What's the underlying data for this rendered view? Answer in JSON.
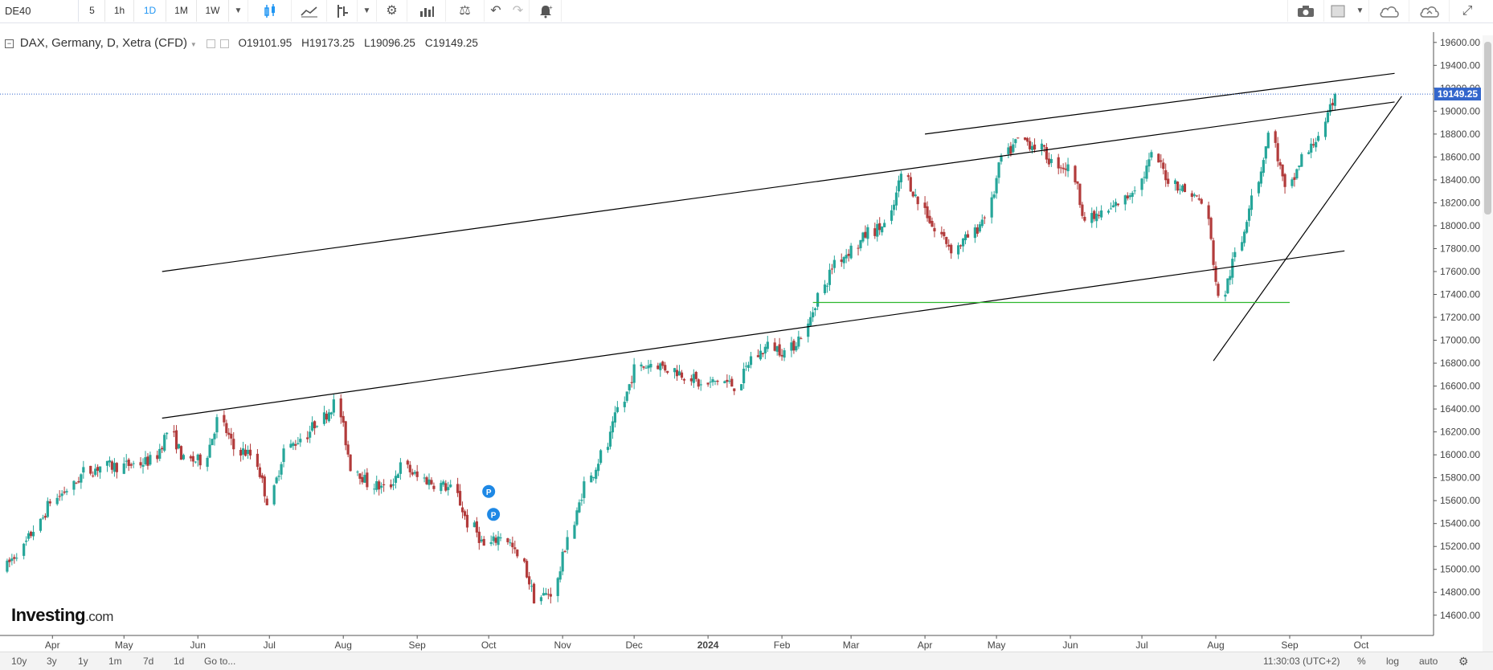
{
  "toolbar": {
    "symbol": "DE40",
    "intervals": [
      "5",
      "1h",
      "1D",
      "1M",
      "1W"
    ],
    "active_interval": "1D"
  },
  "legend": {
    "symbol": "DAX, Germany, D, Xetra (CFD)",
    "open": "O19101.95",
    "high": "H19173.25",
    "low": "L19096.25",
    "close": "C19149.25"
  },
  "price_label": "19149.25",
  "logo": {
    "name": "Investing",
    "suffix": ".com"
  },
  "bottom": {
    "ranges": [
      "10y",
      "3y",
      "1y",
      "1m",
      "7d",
      "1d"
    ],
    "goto": "Go to...",
    "time": "11:30:03 (UTC+2)",
    "percent": "%",
    "log": "log",
    "auto": "auto"
  },
  "colors": {
    "up": "#26a69a",
    "down": "#b23b3b",
    "trendline": "#000000",
    "support": "#2eb82e",
    "price_line": "#3366cc"
  },
  "chart_data": {
    "type": "candlestick",
    "y_ticks": [
      14600,
      14800,
      15000,
      15200,
      15400,
      15600,
      15800,
      16000,
      16200,
      16400,
      16600,
      16800,
      17000,
      17200,
      17400,
      17600,
      17800,
      18000,
      18200,
      18400,
      18600,
      18800,
      19000,
      19200,
      19400,
      19600
    ],
    "ylim": [
      14430,
      19760
    ],
    "x_labels": [
      "Apr",
      "May",
      "Jun",
      "Jul",
      "Aug",
      "Sep",
      "Oct",
      "Nov",
      "Dec",
      "2024",
      "Feb",
      "Mar",
      "Apr",
      "May",
      "Jun",
      "Jul",
      "Aug",
      "Sep",
      "Oct"
    ],
    "x_dates": [
      "2023-04-01",
      "2023-05-01",
      "2023-06-01",
      "2023-07-01",
      "2023-08-01",
      "2023-09-01",
      "2023-10-01",
      "2023-11-01",
      "2023-12-01",
      "2024-01-01",
      "2024-02-01",
      "2024-03-01",
      "2024-04-01",
      "2024-05-01",
      "2024-06-01",
      "2024-07-01",
      "2024-08-01",
      "2024-09-01",
      "2024-10-01"
    ],
    "xlim": [
      "2023-03-10",
      "2024-10-31"
    ],
    "last_price": 19149.25,
    "closes": [
      [
        "2023-03-13",
        15000
      ],
      [
        "2023-03-20",
        15150
      ],
      [
        "2023-03-27",
        15350
      ],
      [
        "2023-04-03",
        15600
      ],
      [
        "2023-04-10",
        15700
      ],
      [
        "2023-04-17",
        15850
      ],
      [
        "2023-04-24",
        15900
      ],
      [
        "2023-05-01",
        15900
      ],
      [
        "2023-05-08",
        15920
      ],
      [
        "2023-05-15",
        15950
      ],
      [
        "2023-05-22",
        16200
      ],
      [
        "2023-05-29",
        15950
      ],
      [
        "2023-06-05",
        15950
      ],
      [
        "2023-06-12",
        16300
      ],
      [
        "2023-06-19",
        16050
      ],
      [
        "2023-06-26",
        16000
      ],
      [
        "2023-07-03",
        15600
      ],
      [
        "2023-07-10",
        16050
      ],
      [
        "2023-07-17",
        16150
      ],
      [
        "2023-07-24",
        16300
      ],
      [
        "2023-07-31",
        16450
      ],
      [
        "2023-08-07",
        15900
      ],
      [
        "2023-08-14",
        15750
      ],
      [
        "2023-08-21",
        15700
      ],
      [
        "2023-08-28",
        15900
      ],
      [
        "2023-09-04",
        15800
      ],
      [
        "2023-09-11",
        15750
      ],
      [
        "2023-09-18",
        15700
      ],
      [
        "2023-09-25",
        15400
      ],
      [
        "2023-10-02",
        15200
      ],
      [
        "2023-10-09",
        15300
      ],
      [
        "2023-10-16",
        15100
      ],
      [
        "2023-10-23",
        14750
      ],
      [
        "2023-10-30",
        14800
      ],
      [
        "2023-11-06",
        15300
      ],
      [
        "2023-11-13",
        15750
      ],
      [
        "2023-11-20",
        16000
      ],
      [
        "2023-11-27",
        16400
      ],
      [
        "2023-12-04",
        16750
      ],
      [
        "2023-12-11",
        16800
      ],
      [
        "2023-12-18",
        16750
      ],
      [
        "2023-12-25",
        16700
      ],
      [
        "2024-01-01",
        16600
      ],
      [
        "2024-01-08",
        16650
      ],
      [
        "2024-01-15",
        16600
      ],
      [
        "2024-01-22",
        16850
      ],
      [
        "2024-01-29",
        16950
      ],
      [
        "2024-02-05",
        16900
      ],
      [
        "2024-02-12",
        17050
      ],
      [
        "2024-02-19",
        17400
      ],
      [
        "2024-02-26",
        17700
      ],
      [
        "2024-03-04",
        17800
      ],
      [
        "2024-03-11",
        17950
      ],
      [
        "2024-03-18",
        18000
      ],
      [
        "2024-03-25",
        18450
      ],
      [
        "2024-04-01",
        18200
      ],
      [
        "2024-04-08",
        17950
      ],
      [
        "2024-04-15",
        17800
      ],
      [
        "2024-04-22",
        17900
      ],
      [
        "2024-04-29",
        18100
      ],
      [
        "2024-05-06",
        18600
      ],
      [
        "2024-05-13",
        18750
      ],
      [
        "2024-05-20",
        18700
      ],
      [
        "2024-05-27",
        18550
      ],
      [
        "2024-06-03",
        18500
      ],
      [
        "2024-06-10",
        18050
      ],
      [
        "2024-06-17",
        18100
      ],
      [
        "2024-06-24",
        18200
      ],
      [
        "2024-07-01",
        18350
      ],
      [
        "2024-07-08",
        18600
      ],
      [
        "2024-07-15",
        18400
      ],
      [
        "2024-07-22",
        18300
      ],
      [
        "2024-07-29",
        18200
      ],
      [
        "2024-08-05",
        17350
      ],
      [
        "2024-08-12",
        17750
      ],
      [
        "2024-08-19",
        18300
      ],
      [
        "2024-08-26",
        18800
      ],
      [
        "2024-09-02",
        18300
      ],
      [
        "2024-09-09",
        18600
      ],
      [
        "2024-09-16",
        18800
      ],
      [
        "2024-09-23",
        19149.25
      ]
    ],
    "trendlines": [
      {
        "from": [
          "2023-05-17",
          17600
        ],
        "to": [
          "2024-10-15",
          19080
        ]
      },
      {
        "from": [
          "2023-05-17",
          16320
        ],
        "to": [
          "2024-09-24",
          17780
        ]
      },
      {
        "from": [
          "2024-04-01",
          18800
        ],
        "to": [
          "2024-10-15",
          19330
        ]
      },
      {
        "from": [
          "2024-07-31",
          16820
        ],
        "to": [
          "2024-10-18",
          19130
        ]
      }
    ],
    "support_line": {
      "value": 17330,
      "from": "2024-02-14",
      "to": "2024-09-01"
    },
    "markers": [
      {
        "label": "P",
        "date": "2023-10-01",
        "value": 15680
      },
      {
        "label": "P",
        "date": "2023-10-03",
        "value": 15480
      }
    ]
  }
}
